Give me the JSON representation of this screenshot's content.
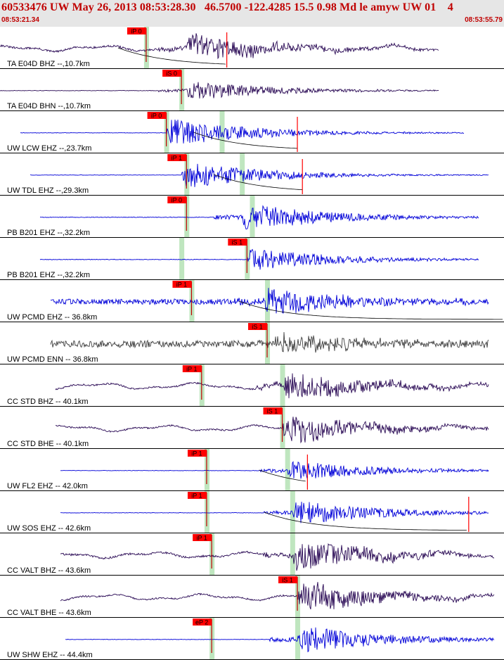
{
  "header": {
    "title": "60533476 UW May 26, 2013 08:53:28.30   46.5700 -122.4285 15.5 0.98 Md le amyw UW 01    4",
    "start_time": "08:53:21.34",
    "end_time": "08:53:55.79"
  },
  "chart_data": {
    "type": "seismogram",
    "title": "60533476 UW May 26, 2013 08:53:28.30   46.5700 -122.4285 15.5 0.98 Md le amyw UW 01    4",
    "x_range": [
      "08:53:21.34",
      "08:53:55.79"
    ],
    "colors": {
      "pick_box": "#ff0000",
      "pick_window": "#bfe6bf",
      "blue_trace": "#0000d8",
      "dark_trace": "#2a0a55",
      "gray_trace": "#404040"
    },
    "traces": [
      {
        "label": "TA E04D BHZ --,10.7km",
        "color": "dark",
        "start": 0.0,
        "end": 0.87,
        "arrival": 0.37,
        "noise": 0.1,
        "amp": 0.75,
        "lowfreq": true,
        "pick": {
          "label": "iP 0",
          "t": 0.29
        },
        "window": 0.29,
        "coda": true,
        "end_mark": 0.45
      },
      {
        "label": "TA E04D BHN --,10.7km",
        "color": "dark",
        "start": 0.0,
        "end": 0.87,
        "arrival": 0.37,
        "noise": 0.02,
        "amp": 0.55,
        "lowfreq": false,
        "pick": {
          "label": "iS 0",
          "t": 0.36
        },
        "window": 0.36,
        "coda": false
      },
      {
        "label": "UW LCW EHZ --,23.7km",
        "color": "blue",
        "start": 0.04,
        "end": 0.92,
        "arrival": 0.33,
        "noise": 0.02,
        "amp": 0.8,
        "lowfreq": false,
        "pick": {
          "label": "iP 0",
          "t": 0.33
        },
        "window": 0.44,
        "coda": true,
        "end_mark": 0.59
      },
      {
        "label": "UW TDL EHZ --,29.3km",
        "color": "blue",
        "start": 0.06,
        "end": 0.97,
        "arrival": 0.36,
        "noise": 0.02,
        "amp": 0.75,
        "lowfreq": false,
        "pick": {
          "label": "iP 1",
          "t": 0.37
        },
        "window": 0.48,
        "coda": true,
        "end_mark": 0.6
      },
      {
        "label": "PB B201 EHZ --,32.2km",
        "color": "blue",
        "start": 0.08,
        "end": 0.95,
        "arrival": 0.48,
        "noise": 0.03,
        "amp": 0.8,
        "lowfreq": false,
        "pick": {
          "label": "iP 0",
          "t": 0.37
        },
        "window": 0.5,
        "coda": false
      },
      {
        "label": "PB B201 EHZ --,32.2km",
        "color": "blue",
        "start": 0.08,
        "end": 0.95,
        "arrival": 0.49,
        "noise": 0.03,
        "amp": 0.65,
        "lowfreq": false,
        "pick": {
          "label": "iS 1",
          "t": 0.49
        },
        "window": 0.36,
        "coda": false
      },
      {
        "label": "UW PCMD EHZ -- 36.8km",
        "color": "blue",
        "start": 0.1,
        "end": 0.97,
        "arrival": 0.52,
        "noise": 0.28,
        "amp": 0.8,
        "lowfreq": false,
        "pick": {
          "label": "iP 1",
          "t": 0.38
        },
        "window": 0.53,
        "coda": true,
        "end_mark": 0.0
      },
      {
        "label": "UW PCMD ENN -- 36.8km",
        "color": "gray",
        "start": 0.1,
        "end": 0.97,
        "arrival": 0.54,
        "noise": 0.35,
        "amp": 0.55,
        "lowfreq": false,
        "pick": {
          "label": "iS 1",
          "t": 0.53
        },
        "window": 0.53,
        "coda": false
      },
      {
        "label": "CC STD BHZ -- 40.1km",
        "color": "dark",
        "start": 0.11,
        "end": 0.97,
        "arrival": 0.56,
        "noise": 0.08,
        "amp": 0.85,
        "lowfreq": true,
        "pick": {
          "label": "iP 1",
          "t": 0.4
        },
        "window": 0.56,
        "coda": false
      },
      {
        "label": "CC STD BHE -- 40.1km",
        "color": "dark",
        "start": 0.11,
        "end": 0.97,
        "arrival": 0.56,
        "noise": 0.08,
        "amp": 0.8,
        "lowfreq": true,
        "pick": {
          "label": "iS 1",
          "t": 0.56
        },
        "window": 0.56,
        "coda": false
      },
      {
        "label": "UW FL2 EHZ -- 42.0km",
        "color": "blue",
        "start": 0.12,
        "end": 0.97,
        "arrival": 0.57,
        "noise": 0.02,
        "amp": 0.6,
        "lowfreq": false,
        "pick": {
          "label": "iP 1",
          "t": 0.41
        },
        "window": 0.57,
        "coda": true,
        "end_mark": 0.61
      },
      {
        "label": "UW SOS EHZ -- 42.6km",
        "color": "blue",
        "start": 0.12,
        "end": 0.97,
        "arrival": 0.58,
        "noise": 0.02,
        "amp": 0.7,
        "lowfreq": false,
        "pick": {
          "label": "iP 1",
          "t": 0.41
        },
        "window": 0.58,
        "coda": true,
        "end_mark": 0.93
      },
      {
        "label": "CC VALT BHZ -- 43.6km",
        "color": "dark",
        "start": 0.12,
        "end": 0.98,
        "arrival": 0.58,
        "noise": 0.1,
        "amp": 0.85,
        "lowfreq": true,
        "pick": {
          "label": "iP 1",
          "t": 0.42
        },
        "window": 0.58,
        "coda": false
      },
      {
        "label": "CC VALT BHE -- 43.6km",
        "color": "dark",
        "start": 0.12,
        "end": 0.98,
        "arrival": 0.59,
        "noise": 0.08,
        "amp": 0.85,
        "lowfreq": true,
        "pick": {
          "label": "iS 1",
          "t": 0.59
        },
        "window": 0.59,
        "coda": false
      },
      {
        "label": "UW SHW EHZ -- 44.4km",
        "color": "blue",
        "start": 0.13,
        "end": 0.98,
        "arrival": 0.59,
        "noise": 0.02,
        "amp": 0.8,
        "lowfreq": false,
        "pick": {
          "label": "eP 2",
          "t": 0.42
        },
        "window": 0.59,
        "coda": false
      }
    ]
  }
}
